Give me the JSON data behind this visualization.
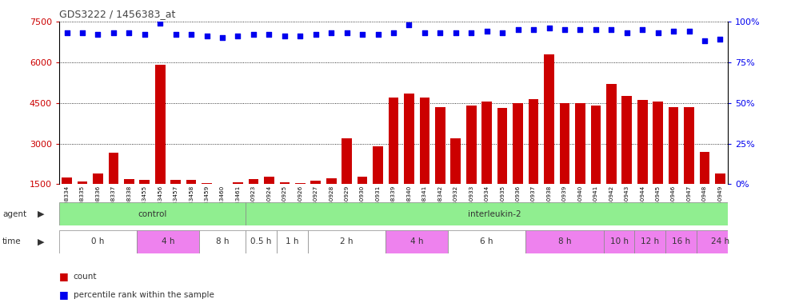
{
  "title": "GDS3222 / 1456383_at",
  "samples": [
    "GSM108334",
    "GSM108335",
    "GSM108336",
    "GSM108337",
    "GSM108338",
    "GSM183455",
    "GSM183456",
    "GSM183457",
    "GSM183458",
    "GSM183459",
    "GSM183460",
    "GSM183461",
    "GSM140923",
    "GSM140924",
    "GSM140925",
    "GSM140926",
    "GSM140927",
    "GSM140928",
    "GSM140929",
    "GSM140930",
    "GSM140931",
    "GSM108339",
    "GSM108340",
    "GSM108341",
    "GSM108342",
    "GSM140932",
    "GSM140933",
    "GSM140934",
    "GSM140935",
    "GSM140936",
    "GSM140937",
    "GSM140938",
    "GSM140939",
    "GSM140940",
    "GSM140941",
    "GSM140942",
    "GSM140943",
    "GSM140944",
    "GSM140945",
    "GSM140946",
    "GSM140947",
    "GSM140948",
    "GSM140949"
  ],
  "counts": [
    1750,
    1600,
    1900,
    2650,
    1700,
    1650,
    5900,
    1650,
    1650,
    1550,
    1480,
    1580,
    1680,
    1780,
    1580,
    1530,
    1620,
    1720,
    3200,
    1780,
    2900,
    4700,
    4850,
    4700,
    4350,
    3200,
    4400,
    4550,
    4300,
    4500,
    4650,
    6300,
    4500,
    4500,
    4400,
    5200,
    4750,
    4600,
    4550,
    4350,
    4350,
    2700,
    1900
  ],
  "percentiles": [
    93,
    93,
    92,
    93,
    93,
    92,
    99,
    92,
    92,
    91,
    90,
    91,
    92,
    92,
    91,
    91,
    92,
    93,
    93,
    92,
    92,
    93,
    98,
    93,
    93,
    93,
    93,
    94,
    93,
    95,
    95,
    96,
    95,
    95,
    95,
    95,
    93,
    95,
    93,
    94,
    94,
    88,
    89
  ],
  "bar_color": "#cc0000",
  "dot_color": "#0000ee",
  "ylim_left": [
    1500,
    7500
  ],
  "ylim_right": [
    0,
    100
  ],
  "yticks_left": [
    1500,
    3000,
    4500,
    6000,
    7500
  ],
  "yticks_right": [
    0,
    25,
    50,
    75,
    100
  ],
  "agent_groups": [
    {
      "label": "control",
      "start": 0,
      "end": 12,
      "color": "#90ee90"
    },
    {
      "label": "interleukin-2",
      "start": 12,
      "end": 44,
      "color": "#90ee90"
    }
  ],
  "time_groups": [
    {
      "label": "0 h",
      "start": 0,
      "end": 5,
      "color": "#ffffff"
    },
    {
      "label": "4 h",
      "start": 5,
      "end": 9,
      "color": "#ee82ee"
    },
    {
      "label": "8 h",
      "start": 9,
      "end": 12,
      "color": "#ffffff"
    },
    {
      "label": "0.5 h",
      "start": 12,
      "end": 14,
      "color": "#ffffff"
    },
    {
      "label": "1 h",
      "start": 14,
      "end": 16,
      "color": "#ffffff"
    },
    {
      "label": "2 h",
      "start": 16,
      "end": 21,
      "color": "#ffffff"
    },
    {
      "label": "4 h",
      "start": 21,
      "end": 25,
      "color": "#ee82ee"
    },
    {
      "label": "6 h",
      "start": 25,
      "end": 30,
      "color": "#ffffff"
    },
    {
      "label": "8 h",
      "start": 30,
      "end": 35,
      "color": "#ee82ee"
    },
    {
      "label": "10 h",
      "start": 35,
      "end": 37,
      "color": "#ee82ee"
    },
    {
      "label": "12 h",
      "start": 37,
      "end": 39,
      "color": "#ee82ee"
    },
    {
      "label": "16 h",
      "start": 39,
      "end": 41,
      "color": "#ee82ee"
    },
    {
      "label": "24 h",
      "start": 41,
      "end": 44,
      "color": "#ee82ee"
    }
  ],
  "bg_color": "#ffffff",
  "grid_color": "#000000",
  "axis_label_color_left": "#cc0000",
  "axis_label_color_right": "#0000ee"
}
